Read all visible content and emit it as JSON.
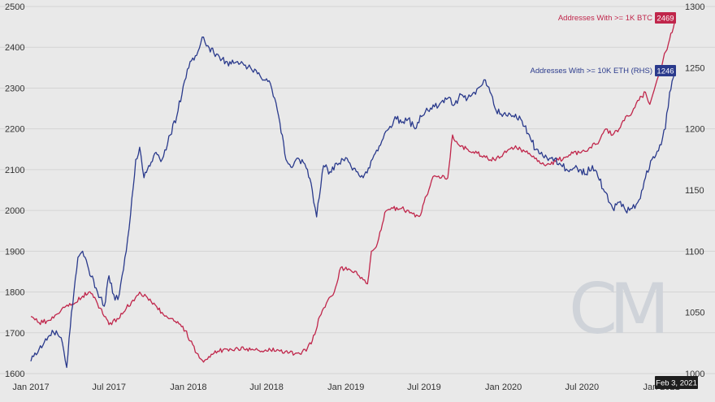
{
  "chart_data": {
    "type": "line",
    "title": "",
    "xlabel": "",
    "ylabel": "",
    "x_ticks": [
      "Jan 2017",
      "Jul 2017",
      "Jan 2018",
      "Jul 2018",
      "Jan 2019",
      "Jul 2019",
      "Jan 2020",
      "Jul 2020",
      "Jan 2021"
    ],
    "left_axis": {
      "series": "Addresses With >= 1K BTC",
      "ylim": [
        1600,
        2500
      ],
      "ticks": [
        "2500",
        "2400",
        "2300",
        "2200",
        "2100",
        "2000",
        "1900",
        "1800",
        "1700",
        "1600"
      ]
    },
    "right_axis": {
      "series": "Addresses With >= 10K ETH (RHS)",
      "ylim": [
        1000,
        1300
      ],
      "ticks": [
        "1300",
        "1250",
        "1200",
        "1150",
        "1100",
        "1050",
        "1000"
      ]
    },
    "x_range": [
      "2017-01-01",
      "2021-02-15"
    ],
    "grid": true,
    "series": [
      {
        "name": "Addresses With >= 1K BTC",
        "axis": "left",
        "color": "#c0264b",
        "last_value": "2469",
        "points": [
          [
            "2017-01-01",
            1740
          ],
          [
            "2017-01-20",
            1725
          ],
          [
            "2017-02-10",
            1730
          ],
          [
            "2017-03-01",
            1745
          ],
          [
            "2017-03-20",
            1762
          ],
          [
            "2017-04-10",
            1770
          ],
          [
            "2017-05-01",
            1790
          ],
          [
            "2017-05-15",
            1800
          ],
          [
            "2017-06-01",
            1780
          ],
          [
            "2017-06-20",
            1740
          ],
          [
            "2017-07-01",
            1720
          ],
          [
            "2017-07-20",
            1735
          ],
          [
            "2017-08-10",
            1760
          ],
          [
            "2017-08-25",
            1780
          ],
          [
            "2017-09-10",
            1800
          ],
          [
            "2017-09-25",
            1790
          ],
          [
            "2017-10-10",
            1770
          ],
          [
            "2017-11-01",
            1750
          ],
          [
            "2017-11-20",
            1735
          ],
          [
            "2017-12-10",
            1722
          ],
          [
            "2017-12-25",
            1705
          ],
          [
            "2018-01-05",
            1680
          ],
          [
            "2018-01-20",
            1650
          ],
          [
            "2018-02-05",
            1628
          ],
          [
            "2018-02-20",
            1640
          ],
          [
            "2018-03-10",
            1655
          ],
          [
            "2018-04-01",
            1660
          ],
          [
            "2018-04-20",
            1662
          ],
          [
            "2018-05-10",
            1660
          ],
          [
            "2018-06-01",
            1658
          ],
          [
            "2018-06-20",
            1655
          ],
          [
            "2018-07-10",
            1658
          ],
          [
            "2018-08-01",
            1655
          ],
          [
            "2018-08-20",
            1650
          ],
          [
            "2018-09-10",
            1650
          ],
          [
            "2018-10-01",
            1655
          ],
          [
            "2018-10-15",
            1680
          ],
          [
            "2018-11-01",
            1740
          ],
          [
            "2018-11-20",
            1780
          ],
          [
            "2018-12-05",
            1800
          ],
          [
            "2018-12-20",
            1860
          ],
          [
            "2019-01-10",
            1855
          ],
          [
            "2019-01-25",
            1850
          ],
          [
            "2019-02-10",
            1830
          ],
          [
            "2019-02-20",
            1820
          ],
          [
            "2019-03-01",
            1900
          ],
          [
            "2019-03-15",
            1920
          ],
          [
            "2019-04-01",
            1995
          ],
          [
            "2019-04-20",
            2005
          ],
          [
            "2019-05-10",
            2005
          ],
          [
            "2019-06-01",
            1995
          ],
          [
            "2019-06-20",
            1985
          ],
          [
            "2019-07-01",
            2020
          ],
          [
            "2019-07-15",
            2060
          ],
          [
            "2019-07-25",
            2085
          ],
          [
            "2019-08-10",
            2080
          ],
          [
            "2019-08-25",
            2080
          ],
          [
            "2019-09-05",
            2185
          ],
          [
            "2019-09-20",
            2160
          ],
          [
            "2019-10-10",
            2150
          ],
          [
            "2019-11-01",
            2140
          ],
          [
            "2019-11-20",
            2130
          ],
          [
            "2019-12-10",
            2125
          ],
          [
            "2020-01-01",
            2140
          ],
          [
            "2020-01-20",
            2155
          ],
          [
            "2020-02-10",
            2150
          ],
          [
            "2020-03-01",
            2140
          ],
          [
            "2020-03-20",
            2120
          ],
          [
            "2020-04-10",
            2112
          ],
          [
            "2020-05-01",
            2120
          ],
          [
            "2020-05-20",
            2130
          ],
          [
            "2020-06-10",
            2140
          ],
          [
            "2020-07-01",
            2145
          ],
          [
            "2020-07-20",
            2155
          ],
          [
            "2020-08-10",
            2170
          ],
          [
            "2020-08-25",
            2200
          ],
          [
            "2020-09-10",
            2185
          ],
          [
            "2020-09-25",
            2200
          ],
          [
            "2020-10-10",
            2230
          ],
          [
            "2020-10-25",
            2240
          ],
          [
            "2020-11-10",
            2270
          ],
          [
            "2020-11-25",
            2290
          ],
          [
            "2020-12-05",
            2260
          ],
          [
            "2020-12-15",
            2295
          ],
          [
            "2020-12-25",
            2330
          ],
          [
            "2021-01-05",
            2370
          ],
          [
            "2021-01-20",
            2420
          ],
          [
            "2021-02-03",
            2469
          ]
        ]
      },
      {
        "name": "Addresses With >= 10K ETH (RHS)",
        "axis": "right",
        "color": "#2a3a8c",
        "last_value": "1246",
        "points": [
          [
            "2017-01-01",
            1010
          ],
          [
            "2017-01-20",
            1020
          ],
          [
            "2017-02-10",
            1030
          ],
          [
            "2017-03-01",
            1035
          ],
          [
            "2017-03-15",
            1025
          ],
          [
            "2017-03-25",
            1005
          ],
          [
            "2017-04-05",
            1050
          ],
          [
            "2017-04-20",
            1095
          ],
          [
            "2017-05-01",
            1100
          ],
          [
            "2017-05-15",
            1085
          ],
          [
            "2017-06-01",
            1070
          ],
          [
            "2017-06-20",
            1055
          ],
          [
            "2017-07-01",
            1080
          ],
          [
            "2017-07-15",
            1060
          ],
          [
            "2017-07-25",
            1065
          ],
          [
            "2017-08-10",
            1100
          ],
          [
            "2017-08-20",
            1130
          ],
          [
            "2017-09-01",
            1175
          ],
          [
            "2017-09-10",
            1185
          ],
          [
            "2017-09-20",
            1160
          ],
          [
            "2017-10-01",
            1170
          ],
          [
            "2017-10-15",
            1180
          ],
          [
            "2017-11-01",
            1175
          ],
          [
            "2017-11-20",
            1195
          ],
          [
            "2017-12-05",
            1210
          ],
          [
            "2017-12-20",
            1235
          ],
          [
            "2018-01-05",
            1255
          ],
          [
            "2018-01-20",
            1260
          ],
          [
            "2018-02-05",
            1275
          ],
          [
            "2018-02-15",
            1268
          ],
          [
            "2018-03-01",
            1262
          ],
          [
            "2018-03-20",
            1257
          ],
          [
            "2018-04-10",
            1253
          ],
          [
            "2018-04-25",
            1255
          ],
          [
            "2018-05-10",
            1252
          ],
          [
            "2018-05-25",
            1250
          ],
          [
            "2018-06-10",
            1245
          ],
          [
            "2018-06-25",
            1240
          ],
          [
            "2018-07-10",
            1237
          ],
          [
            "2018-07-20",
            1225
          ],
          [
            "2018-08-01",
            1205
          ],
          [
            "2018-08-15",
            1175
          ],
          [
            "2018-09-01",
            1170
          ],
          [
            "2018-09-15",
            1175
          ],
          [
            "2018-10-01",
            1168
          ],
          [
            "2018-10-15",
            1150
          ],
          [
            "2018-10-25",
            1128
          ],
          [
            "2018-11-10",
            1170
          ],
          [
            "2018-11-25",
            1165
          ],
          [
            "2018-12-10",
            1172
          ],
          [
            "2018-12-25",
            1175
          ],
          [
            "2019-01-10",
            1172
          ],
          [
            "2019-01-25",
            1165
          ],
          [
            "2019-02-10",
            1160
          ],
          [
            "2019-02-25",
            1168
          ],
          [
            "2019-03-10",
            1180
          ],
          [
            "2019-03-25",
            1190
          ],
          [
            "2019-04-10",
            1200
          ],
          [
            "2019-04-25",
            1210
          ],
          [
            "2019-05-10",
            1205
          ],
          [
            "2019-05-25",
            1208
          ],
          [
            "2019-06-10",
            1200
          ],
          [
            "2019-06-25",
            1210
          ],
          [
            "2019-07-10",
            1215
          ],
          [
            "2019-07-25",
            1218
          ],
          [
            "2019-08-10",
            1222
          ],
          [
            "2019-08-25",
            1225
          ],
          [
            "2019-09-10",
            1220
          ],
          [
            "2019-09-25",
            1228
          ],
          [
            "2019-10-10",
            1225
          ],
          [
            "2019-10-25",
            1230
          ],
          [
            "2019-11-10",
            1235
          ],
          [
            "2019-11-20",
            1240
          ],
          [
            "2019-12-01",
            1230
          ],
          [
            "2019-12-15",
            1215
          ],
          [
            "2020-01-01",
            1212
          ],
          [
            "2020-01-20",
            1210
          ],
          [
            "2020-02-10",
            1208
          ],
          [
            "2020-03-01",
            1195
          ],
          [
            "2020-03-15",
            1183
          ],
          [
            "2020-04-01",
            1178
          ],
          [
            "2020-04-20",
            1176
          ],
          [
            "2020-05-10",
            1172
          ],
          [
            "2020-06-01",
            1165
          ],
          [
            "2020-06-20",
            1168
          ],
          [
            "2020-07-10",
            1163
          ],
          [
            "2020-07-25",
            1170
          ],
          [
            "2020-08-10",
            1158
          ],
          [
            "2020-08-25",
            1148
          ],
          [
            "2020-09-10",
            1135
          ],
          [
            "2020-09-25",
            1140
          ],
          [
            "2020-10-10",
            1133
          ],
          [
            "2020-10-25",
            1135
          ],
          [
            "2020-11-10",
            1142
          ],
          [
            "2020-11-25",
            1160
          ],
          [
            "2020-12-10",
            1175
          ],
          [
            "2020-12-25",
            1182
          ],
          [
            "2021-01-10",
            1200
          ],
          [
            "2021-01-20",
            1230
          ],
          [
            "2021-02-03",
            1246
          ]
        ]
      }
    ],
    "watermark": "CM",
    "tooltip_date": "Feb 3, 2021"
  }
}
